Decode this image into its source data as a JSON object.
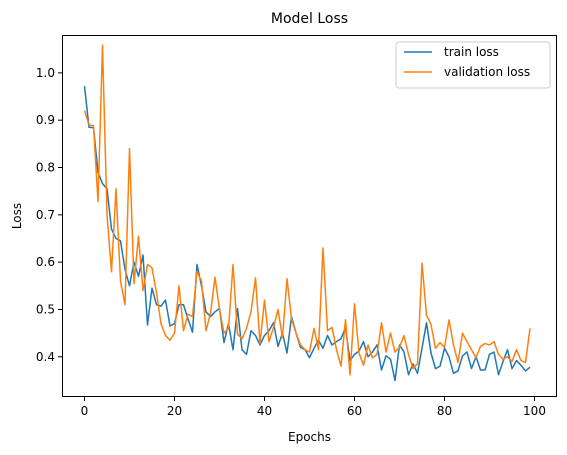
{
  "chart_data": {
    "type": "line",
    "title": "Model Loss",
    "xlabel": "Epochs",
    "ylabel": "Loss",
    "xlim": [
      -5,
      105
    ],
    "ylim": [
      0.315,
      1.08
    ],
    "xticks": [
      0,
      20,
      40,
      60,
      80,
      100
    ],
    "yticks": [
      0.4,
      0.5,
      0.6,
      0.7,
      0.8,
      0.9,
      1.0
    ],
    "grid": false,
    "legend_position": "top-right",
    "x": [
      0,
      1,
      2,
      3,
      4,
      5,
      6,
      7,
      8,
      9,
      10,
      11,
      12,
      13,
      14,
      15,
      16,
      17,
      18,
      19,
      20,
      21,
      22,
      23,
      24,
      25,
      26,
      27,
      28,
      29,
      30,
      31,
      32,
      33,
      34,
      35,
      36,
      37,
      38,
      39,
      40,
      41,
      42,
      43,
      44,
      45,
      46,
      47,
      48,
      49,
      50,
      51,
      52,
      53,
      54,
      55,
      56,
      57,
      58,
      59,
      60,
      61,
      62,
      63,
      64,
      65,
      66,
      67,
      68,
      69,
      70,
      71,
      72,
      73,
      74,
      75,
      76,
      77,
      78,
      79,
      80,
      81,
      82,
      83,
      84,
      85,
      86,
      87,
      88,
      89,
      90,
      91,
      92,
      93,
      94,
      95,
      96,
      97,
      98,
      99
    ],
    "series": [
      {
        "name": "train loss",
        "color": "#1f77b4",
        "values": [
          0.972,
          0.885,
          0.884,
          0.79,
          0.766,
          0.755,
          0.67,
          0.65,
          0.645,
          0.585,
          0.55,
          0.6,
          0.57,
          0.615,
          0.467,
          0.545,
          0.51,
          0.507,
          0.52,
          0.465,
          0.47,
          0.51,
          0.51,
          0.48,
          0.452,
          0.595,
          0.55,
          0.495,
          0.485,
          0.495,
          0.502,
          0.43,
          0.47,
          0.415,
          0.502,
          0.415,
          0.405,
          0.455,
          0.445,
          0.425,
          0.445,
          0.455,
          0.472,
          0.422,
          0.45,
          0.408,
          0.485,
          0.45,
          0.42,
          0.415,
          0.398,
          0.418,
          0.435,
          0.418,
          0.445,
          0.425,
          0.432,
          0.438,
          0.462,
          0.392,
          0.405,
          0.412,
          0.432,
          0.4,
          0.41,
          0.425,
          0.372,
          0.402,
          0.395,
          0.35,
          0.425,
          0.41,
          0.362,
          0.385,
          0.365,
          0.418,
          0.472,
          0.408,
          0.375,
          0.38,
          0.418,
          0.4,
          0.365,
          0.37,
          0.402,
          0.41,
          0.375,
          0.4,
          0.372,
          0.372,
          0.405,
          0.41,
          0.362,
          0.39,
          0.415,
          0.375,
          0.392,
          0.382,
          0.37,
          0.378
        ]
      },
      {
        "name": "validation loss",
        "color": "#ff7f0e",
        "values": [
          0.92,
          0.89,
          0.888,
          0.728,
          1.058,
          0.7,
          0.58,
          0.755,
          0.56,
          0.51,
          0.84,
          0.555,
          0.655,
          0.54,
          0.595,
          0.588,
          0.535,
          0.47,
          0.445,
          0.435,
          0.45,
          0.55,
          0.455,
          0.49,
          0.485,
          0.58,
          0.56,
          0.455,
          0.492,
          0.568,
          0.5,
          0.45,
          0.46,
          0.595,
          0.448,
          0.438,
          0.46,
          0.495,
          0.567,
          0.428,
          0.52,
          0.432,
          0.462,
          0.5,
          0.44,
          0.565,
          0.48,
          0.45,
          0.425,
          0.415,
          0.41,
          0.46,
          0.415,
          0.63,
          0.455,
          0.462,
          0.415,
          0.38,
          0.478,
          0.362,
          0.512,
          0.408,
          0.382,
          0.425,
          0.398,
          0.405,
          0.472,
          0.41,
          0.45,
          0.41,
          0.42,
          0.445,
          0.405,
          0.375,
          0.385,
          0.598,
          0.488,
          0.468,
          0.418,
          0.43,
          0.42,
          0.478,
          0.425,
          0.388,
          0.45,
          0.432,
          0.415,
          0.398,
          0.422,
          0.428,
          0.425,
          0.432,
          0.405,
          0.395,
          0.4,
          0.39,
          0.415,
          0.392,
          0.388,
          0.46
        ]
      }
    ]
  }
}
